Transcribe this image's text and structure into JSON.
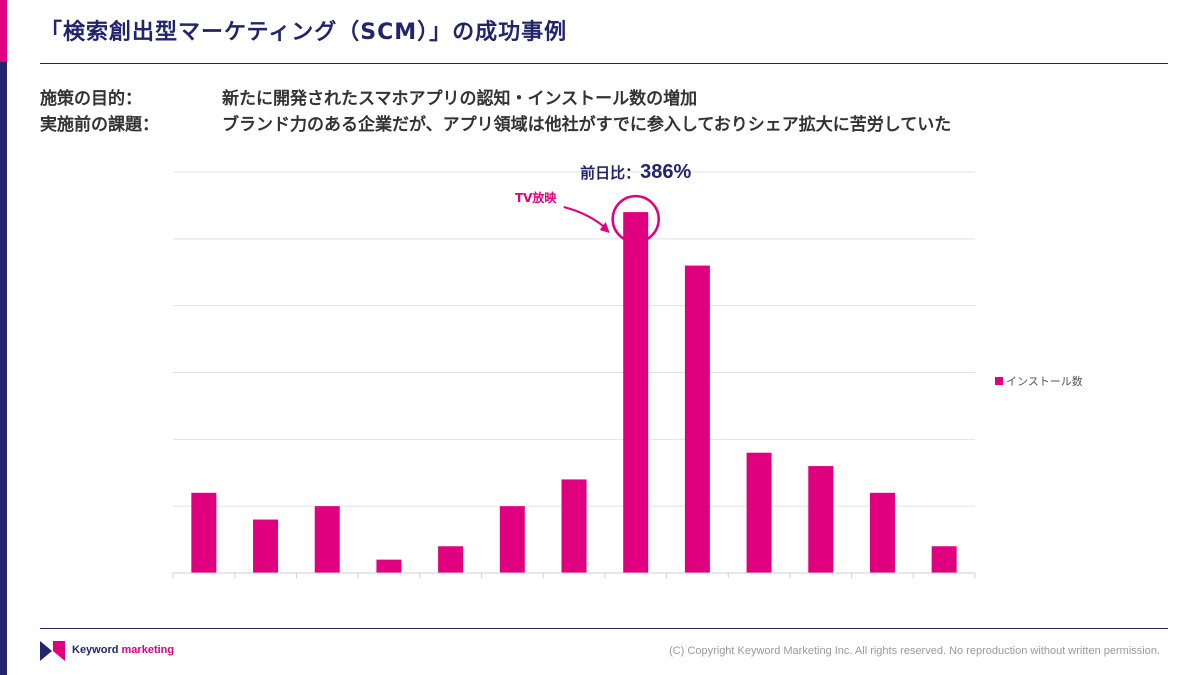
{
  "slide": {
    "title": "「検索創出型マーケティング（SCM）」の成功事例"
  },
  "info": {
    "purpose_label": "施策の目的：",
    "purpose_value": "新たに開発されたスマホアプリの認知・インストール数の増加",
    "issue_label": "実施前の課題：",
    "issue_value": "ブランド力のある企業だが、アプリ領域は他社がすでに参入しておりシェア拡大に苦労していた"
  },
  "chart_data": {
    "type": "bar",
    "title": "",
    "xlabel": "",
    "ylabel": "",
    "categories": [
      "",
      "",
      "",
      "",
      "",
      "",
      "",
      "",
      "",
      "",
      "",
      "",
      ""
    ],
    "series": [
      {
        "name": "インストール数",
        "values": [
          1.2,
          0.8,
          1.0,
          0.2,
          0.4,
          1.0,
          1.4,
          5.4,
          4.6,
          1.8,
          1.6,
          1.2,
          0.4
        ]
      }
    ],
    "ylim": [
      0,
      6
    ],
    "grid": true,
    "legend": "right",
    "annotations": {
      "highlight_index": 7,
      "highlight_label": "TV放映",
      "ratio_label": "前日比：",
      "ratio_value": "386%"
    }
  },
  "footer": {
    "brand_main": "Keyword",
    "brand_accent": "marketing",
    "copyright": "(C) Copyright Keyword Marketing Inc. All rights reserved. No reproduction without written permission."
  },
  "colors": {
    "bar": "#e0007f",
    "navy": "#22256b",
    "grid": "#e2e2e2"
  }
}
